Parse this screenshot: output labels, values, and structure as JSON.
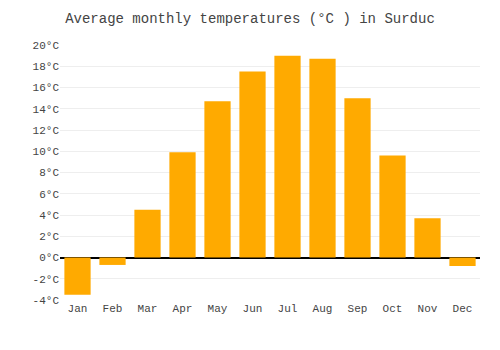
{
  "chart_data": {
    "type": "bar",
    "title": "Average monthly temperatures (°C ) in Surduc",
    "categories": [
      "Jan",
      "Feb",
      "Mar",
      "Apr",
      "May",
      "Jun",
      "Jul",
      "Aug",
      "Sep",
      "Oct",
      "Nov",
      "Dec"
    ],
    "values": [
      -3.5,
      -0.7,
      4.5,
      9.9,
      14.7,
      17.5,
      19.0,
      18.7,
      15.0,
      9.6,
      3.7,
      -0.8
    ],
    "color": "#FFAA00",
    "ylim": [
      -4,
      20
    ],
    "yticks": [
      {
        "value": -4,
        "label": "-4°C"
      },
      {
        "value": -2,
        "label": "-2°C"
      },
      {
        "value": 0,
        "label": "0°C"
      },
      {
        "value": 2,
        "label": "2°C"
      },
      {
        "value": 4,
        "label": "4°C"
      },
      {
        "value": 6,
        "label": "6°C"
      },
      {
        "value": 8,
        "label": "8°C"
      },
      {
        "value": 10,
        "label": "10°C"
      },
      {
        "value": 12,
        "label": "12°C"
      },
      {
        "value": 14,
        "label": "14°C"
      },
      {
        "value": 16,
        "label": "16°C"
      },
      {
        "value": 18,
        "label": "18°C"
      },
      {
        "value": 20,
        "label": "20°C"
      }
    ],
    "grid": true
  }
}
